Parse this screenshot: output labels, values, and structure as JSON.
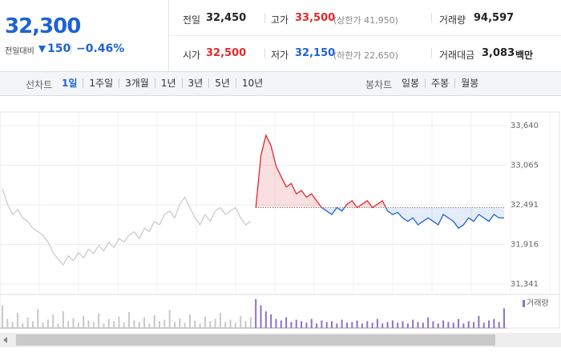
{
  "header": {
    "price": "32,300",
    "change_label": "전일대비",
    "change": "150",
    "change_pct": "−0.46%"
  },
  "stats": {
    "prev_close": {
      "label": "전일",
      "value": "32,450"
    },
    "high": {
      "label": "고가",
      "value": "33,500",
      "sub": "(상한가 41,950)"
    },
    "volume": {
      "label": "거래량",
      "value": "94,597"
    },
    "open": {
      "label": "시가",
      "value": "32,500"
    },
    "low": {
      "label": "저가",
      "value": "32,150",
      "sub": "(하한가 22,650)"
    },
    "amount": {
      "label": "거래대금",
      "value": "3,083",
      "unit": "백만"
    }
  },
  "tabs": {
    "line_label": "선차트",
    "line_items": [
      "1일",
      "1주일",
      "3개월",
      "1년",
      "3년",
      "5년",
      "10년"
    ],
    "candle_label": "봉차트",
    "candle_items": [
      "일봉",
      "주봉",
      "월봉"
    ]
  },
  "chart_data": {
    "type": "line",
    "baseline": 32450,
    "ylim": [
      31341,
      33640
    ],
    "yticks": [
      {
        "value": 33640,
        "label": "33,640"
      },
      {
        "value": 33065,
        "label": "33,065"
      },
      {
        "value": 32491,
        "label": "32,491"
      },
      {
        "value": 31916,
        "label": "31,916"
      },
      {
        "value": 31341,
        "label": "31,341"
      }
    ],
    "grid": true,
    "series": [
      {
        "color": "#c8c8c8",
        "values": [
          32730,
          32500,
          32350,
          32420,
          32300,
          32250,
          32150,
          32100,
          32050,
          31950,
          31800,
          31700,
          31620,
          31750,
          31680,
          31800,
          31720,
          31850,
          31780,
          31900,
          31820,
          31950,
          31870,
          32000,
          31950,
          32050,
          32100,
          32000,
          32150,
          32100,
          32250,
          32200,
          32350,
          32400,
          32300,
          32500,
          32600,
          32450,
          32300,
          32200,
          32350,
          32250,
          32400,
          32450,
          32350,
          32400,
          32450,
          32300,
          32200,
          32250,
          null,
          null,
          null,
          null,
          null,
          null,
          null,
          null,
          null,
          null,
          null,
          null,
          null,
          null,
          null,
          null,
          null,
          null,
          null,
          null,
          null,
          null,
          null,
          null,
          null,
          null,
          null,
          null,
          null,
          null,
          null,
          null,
          null,
          null,
          null,
          null,
          null,
          null,
          null,
          null,
          null,
          null,
          null,
          null,
          null,
          null,
          null,
          null,
          null,
          null
        ]
      },
      {
        "up_color": "#e0282e",
        "down_color": "#1f63d0",
        "values": [
          null,
          null,
          null,
          null,
          null,
          null,
          null,
          null,
          null,
          null,
          null,
          null,
          null,
          null,
          null,
          null,
          null,
          null,
          null,
          null,
          null,
          null,
          null,
          null,
          null,
          null,
          null,
          null,
          null,
          null,
          null,
          null,
          null,
          null,
          null,
          null,
          null,
          null,
          null,
          null,
          null,
          null,
          null,
          null,
          null,
          null,
          null,
          null,
          null,
          null,
          32450,
          33200,
          33500,
          33350,
          33050,
          32900,
          32750,
          32800,
          32650,
          32700,
          32600,
          32650,
          32550,
          32450,
          32400,
          32350,
          32450,
          32400,
          32500,
          32550,
          32450,
          32500,
          32550,
          32450,
          32500,
          32550,
          32400,
          32350,
          32380,
          32300,
          32250,
          32300,
          32200,
          32250,
          32300,
          32250,
          32200,
          32350,
          32300,
          32250,
          32150,
          32200,
          32300,
          32250,
          32350,
          32300,
          32250,
          32350,
          32300,
          32300
        ]
      },
      {
        "name": "거래량",
        "color": "#8b72c9",
        "prev_color": "#c8c8c8",
        "values": [
          30,
          12,
          8,
          20,
          6,
          14,
          9,
          25,
          7,
          11,
          18,
          6,
          22,
          9,
          13,
          7,
          16,
          10,
          8,
          19,
          6,
          12,
          9,
          15,
          7,
          21,
          10,
          8,
          14,
          6,
          17,
          9,
          11,
          24,
          8,
          13,
          7,
          18,
          10,
          6,
          15,
          9,
          12,
          20,
          8,
          11,
          7,
          16,
          9,
          14,
          38,
          30,
          22,
          18,
          12,
          10,
          14,
          8,
          11,
          9,
          7,
          12,
          6,
          10,
          8,
          9,
          6,
          11,
          7,
          8,
          10,
          6,
          9,
          7,
          12,
          6,
          8,
          10,
          7,
          9,
          6,
          11,
          8,
          7,
          14,
          9,
          6,
          10,
          8,
          7,
          12,
          6,
          9,
          8,
          16,
          7,
          10,
          12,
          8,
          26
        ]
      }
    ]
  }
}
